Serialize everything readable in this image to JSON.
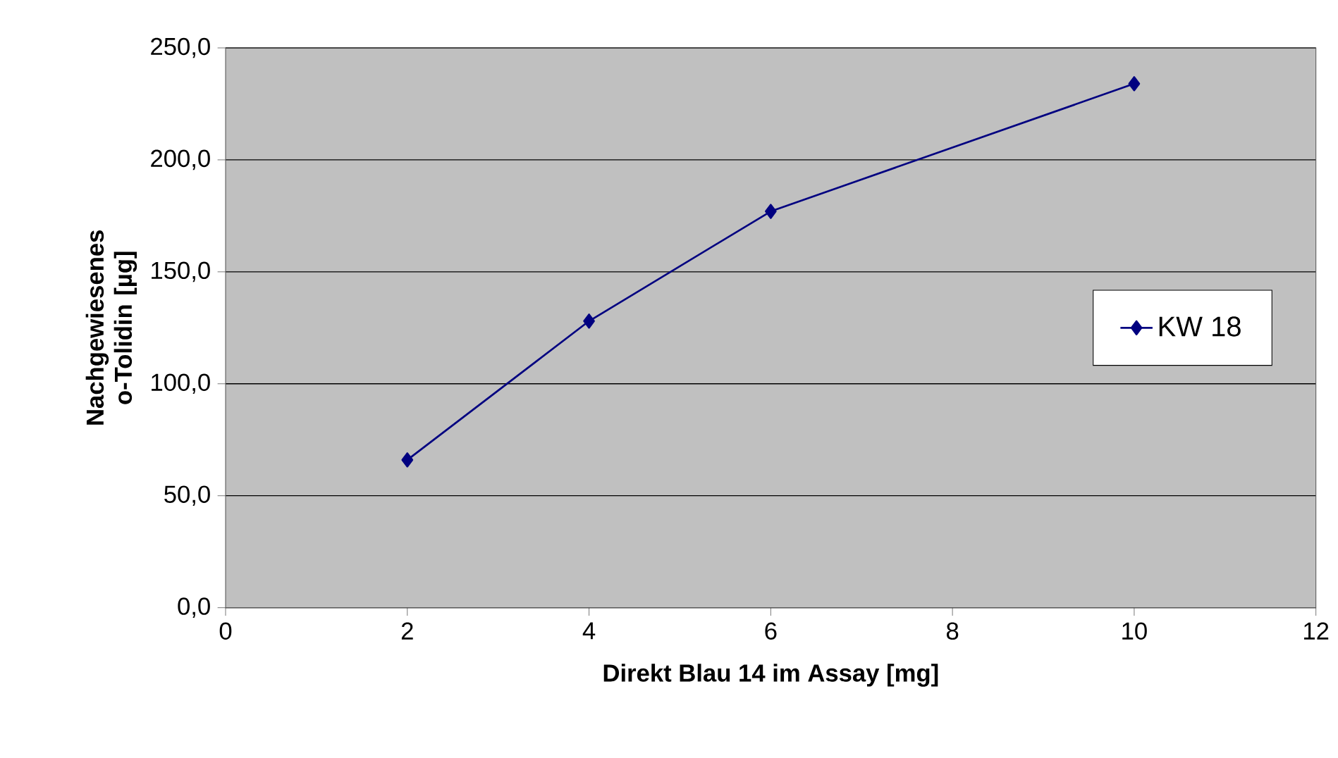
{
  "chart_data": {
    "type": "line",
    "xlabel": "Direkt Blau 14 im Assay [mg]",
    "ylabel": "Nachgewiesenes o-Tolidin [µg]",
    "x": [
      2,
      4,
      6,
      10
    ],
    "series": [
      {
        "name": "KW 18",
        "color": "#000080",
        "values": [
          66,
          128,
          177,
          234
        ]
      }
    ],
    "xlim": [
      0,
      12
    ],
    "xticks": [
      0,
      2,
      4,
      6,
      8,
      10,
      12
    ],
    "ylim": [
      0,
      250
    ],
    "yticks": [
      {
        "value": 0,
        "label": "0,0"
      },
      {
        "value": 50,
        "label": "50,0"
      },
      {
        "value": 100,
        "label": "100,0"
      },
      {
        "value": 150,
        "label": "150,0"
      },
      {
        "value": 200,
        "label": "200,0"
      },
      {
        "value": 250,
        "label": "250,0"
      }
    ],
    "grid": "y",
    "legend": "right",
    "marker": "diamond",
    "line_style": "solid"
  }
}
